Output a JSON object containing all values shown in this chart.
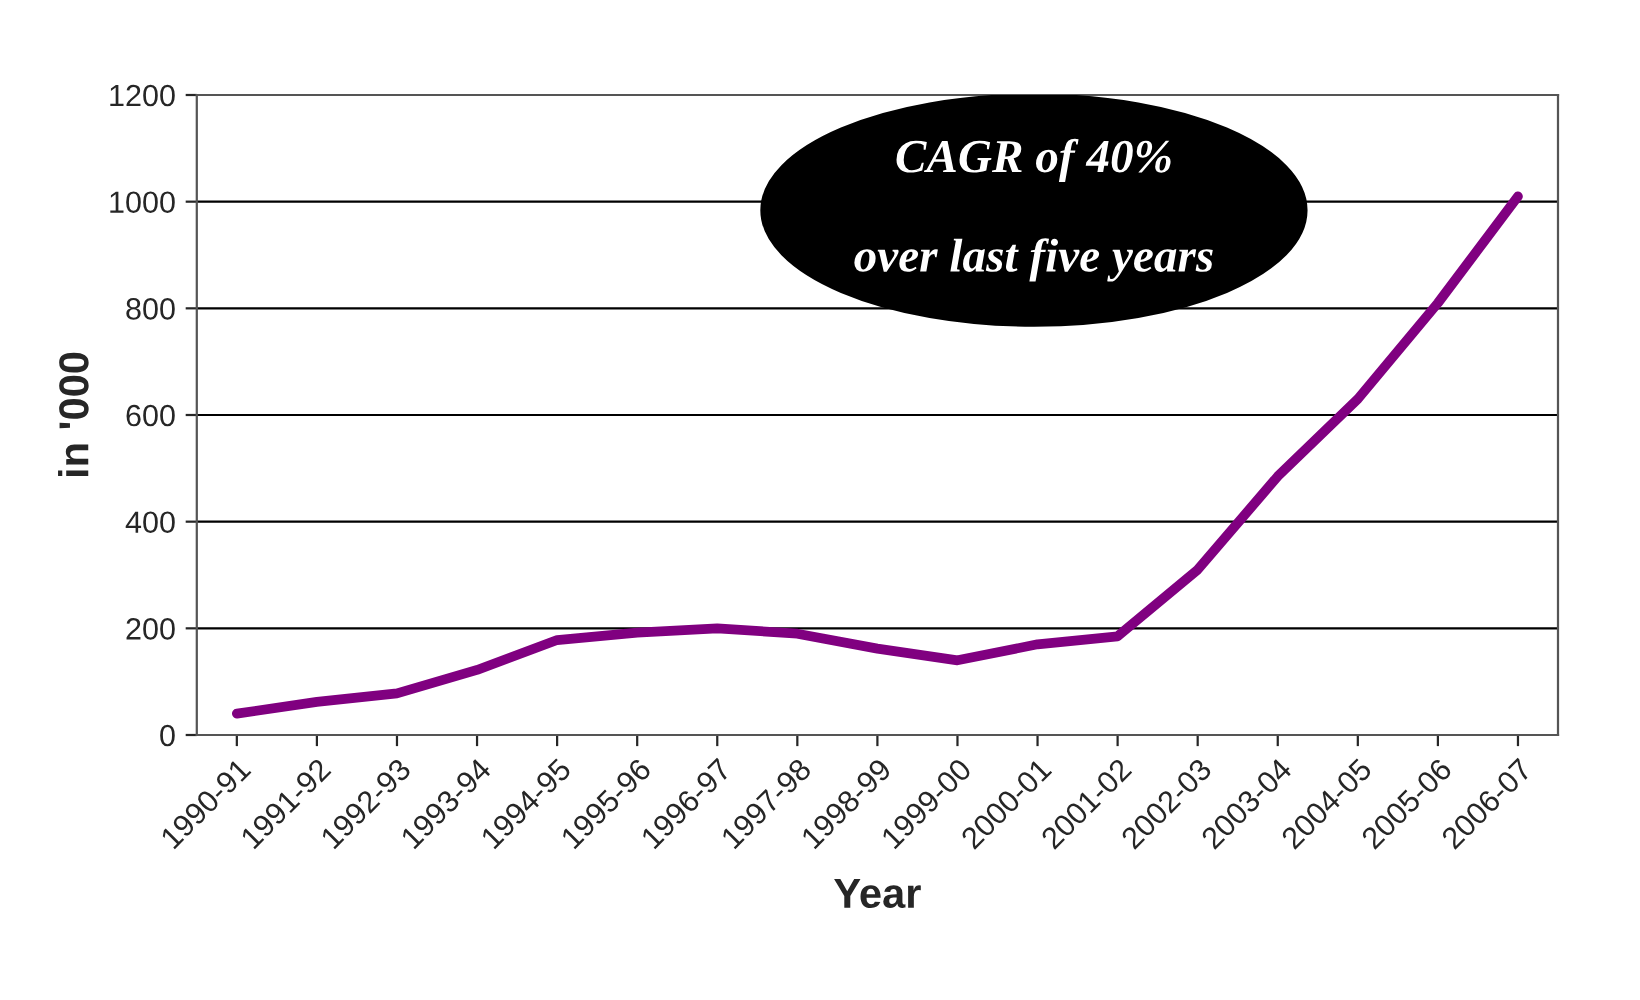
{
  "chart_data": {
    "type": "line",
    "xlabel": "Year",
    "ylabel": "in '000",
    "categories": [
      "1990-91",
      "1991-92",
      "1992-93",
      "1993-94",
      "1994-95",
      "1995-96",
      "1996-97",
      "1997-98",
      "1998-99",
      "1999-00",
      "2000-01",
      "2001-02",
      "2002-03",
      "2003-04",
      "2004-05",
      "2005-06",
      "2006-07"
    ],
    "series": [
      {
        "color": "#800080",
        "values": [
          40,
          62,
          78,
          122,
          178,
          192,
          200,
          190,
          162,
          140,
          170,
          185,
          310,
          485,
          630,
          810,
          1010
        ]
      }
    ],
    "ylim": [
      0,
      1200
    ],
    "yticks": [
      0,
      200,
      400,
      600,
      800,
      1000,
      1200
    ],
    "grid": "y",
    "marker": "none",
    "line_style": "solid",
    "legend": false,
    "annotations": [
      "CAGR of 40%\n\nover last five years"
    ]
  }
}
